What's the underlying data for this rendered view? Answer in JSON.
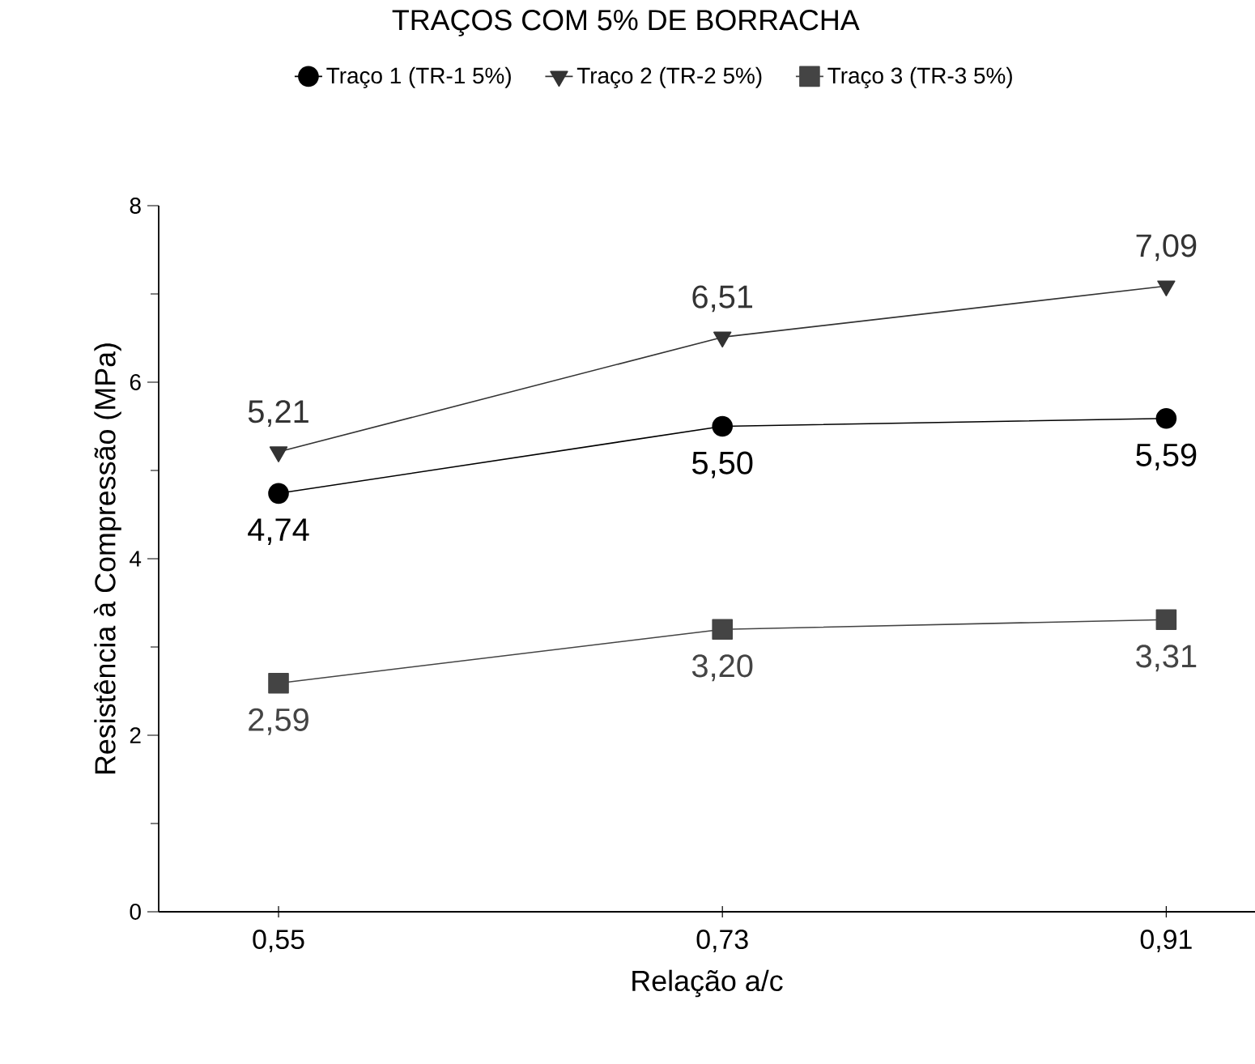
{
  "chart_data": {
    "type": "line",
    "title": "TRAÇOS COM 5% DE BORRACHA",
    "xlabel": "Relação a/c",
    "ylabel": "Resistência à Compressão (MPa)",
    "categories": [
      "0,55",
      "0,73",
      "0,91"
    ],
    "series": [
      {
        "name": "Traço 1 (TR-1   5%)",
        "color": "#000000",
        "marker": "circle",
        "values": [
          4.74,
          5.5,
          5.59
        ],
        "value_labels": [
          "4,74",
          "5,50",
          "5,59"
        ]
      },
      {
        "name": "Traço 2 (TR-2   5%)",
        "color": "#333333",
        "marker": "triangle",
        "values": [
          5.21,
          6.51,
          7.09
        ],
        "value_labels": [
          "5,21",
          "6,51",
          "7,09"
        ]
      },
      {
        "name": "Traço 3 (TR-3   5%)",
        "color": "#444444",
        "marker": "square",
        "values": [
          2.59,
          3.2,
          3.31
        ],
        "value_labels": [
          "2,59",
          "3,20",
          "3,31"
        ]
      }
    ],
    "ylim": [
      0,
      8
    ],
    "yticks": [
      0,
      2,
      4,
      6,
      8
    ],
    "grid": false,
    "legend": "top"
  }
}
